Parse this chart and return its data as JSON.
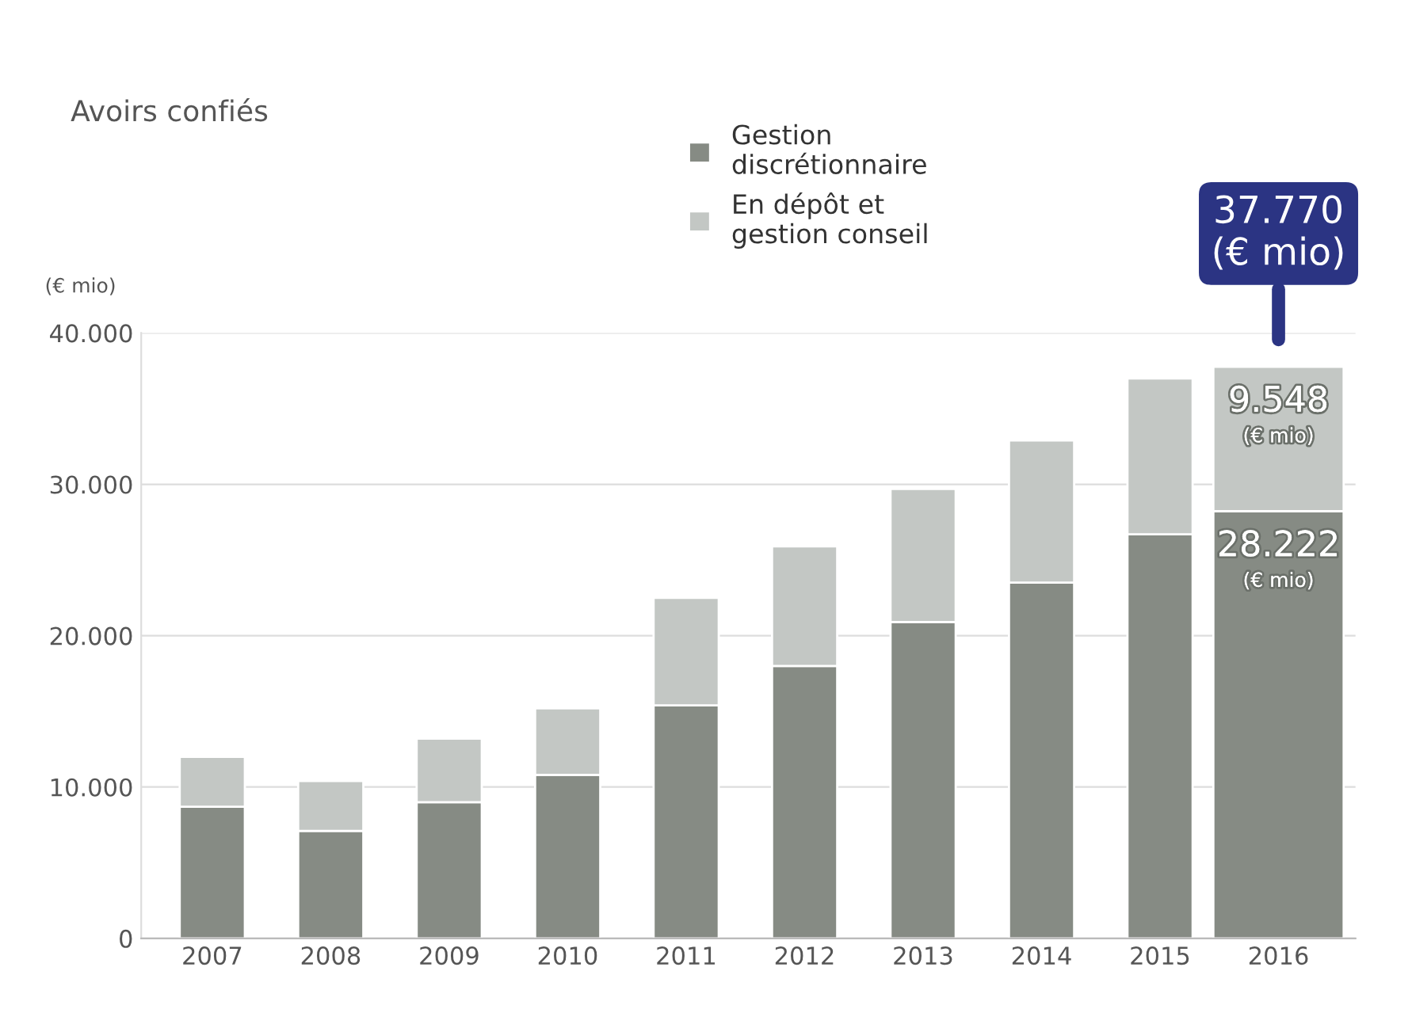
{
  "chart_data": {
    "type": "bar",
    "title": "Avoirs confiés",
    "ylabel": "(€ mio)",
    "stacked": true,
    "categories": [
      "2007",
      "2008",
      "2009",
      "2010",
      "2011",
      "2012",
      "2013",
      "2014",
      "2015",
      "2016"
    ],
    "series": [
      {
        "name": "Gestion\ndiscrétionnaire",
        "color": "#868b84",
        "values": [
          8700,
          7100,
          9000,
          10800,
          15400,
          18000,
          20900,
          23500,
          26700,
          28222
        ],
        "value_labels": [
          null,
          null,
          null,
          null,
          null,
          null,
          null,
          null,
          null,
          "28.222\n(€ mio)"
        ]
      },
      {
        "name": "En dépôt et\ngestion conseil",
        "color": "#c3c7c4",
        "values": [
          3300,
          3300,
          4200,
          4400,
          7100,
          7900,
          8800,
          9400,
          10300,
          9548
        ],
        "value_labels": [
          null,
          null,
          null,
          null,
          null,
          null,
          null,
          null,
          null,
          "9.548\n(€ mio)"
        ]
      }
    ],
    "totals": [
      null,
      null,
      null,
      null,
      null,
      null,
      null,
      null,
      null,
      "37.770\n(€ mio)"
    ],
    "ylim": [
      0,
      40000
    ],
    "yticks": [
      {
        "value": 0,
        "label": "0"
      },
      {
        "value": 10000,
        "label": "10.000"
      },
      {
        "value": 20000,
        "label": "20.000"
      },
      {
        "value": 30000,
        "label": "30.000"
      },
      {
        "value": 40000,
        "label": "40.000"
      }
    ],
    "grid": "y",
    "legend": "top"
  }
}
